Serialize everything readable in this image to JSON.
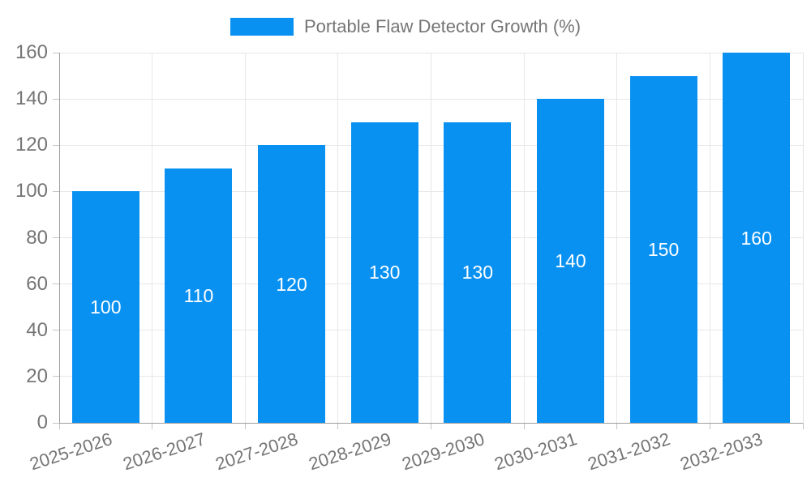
{
  "chart_data": {
    "type": "bar",
    "title": "Portable Flaw Detector Growth (%)",
    "categories": [
      "2025-2026",
      "2026-2027",
      "2027-2028",
      "2028-2029",
      "2029-2030",
      "2030-2031",
      "2031-2032",
      "2032-2033"
    ],
    "values": [
      100,
      110,
      120,
      130,
      130,
      140,
      150,
      160
    ],
    "xlabel": "",
    "ylabel": "",
    "ylim": [
      0,
      160
    ],
    "y_ticks": [
      0,
      20,
      40,
      60,
      80,
      100,
      120,
      140,
      160
    ],
    "grid": true,
    "legend_position": "top-center",
    "bar_color": "#0991f2",
    "value_label_color": "#ffffff",
    "axis_text_color": "#757575",
    "grid_color": "#e7e7e7",
    "axis_line_color": "#9e9e9e"
  }
}
